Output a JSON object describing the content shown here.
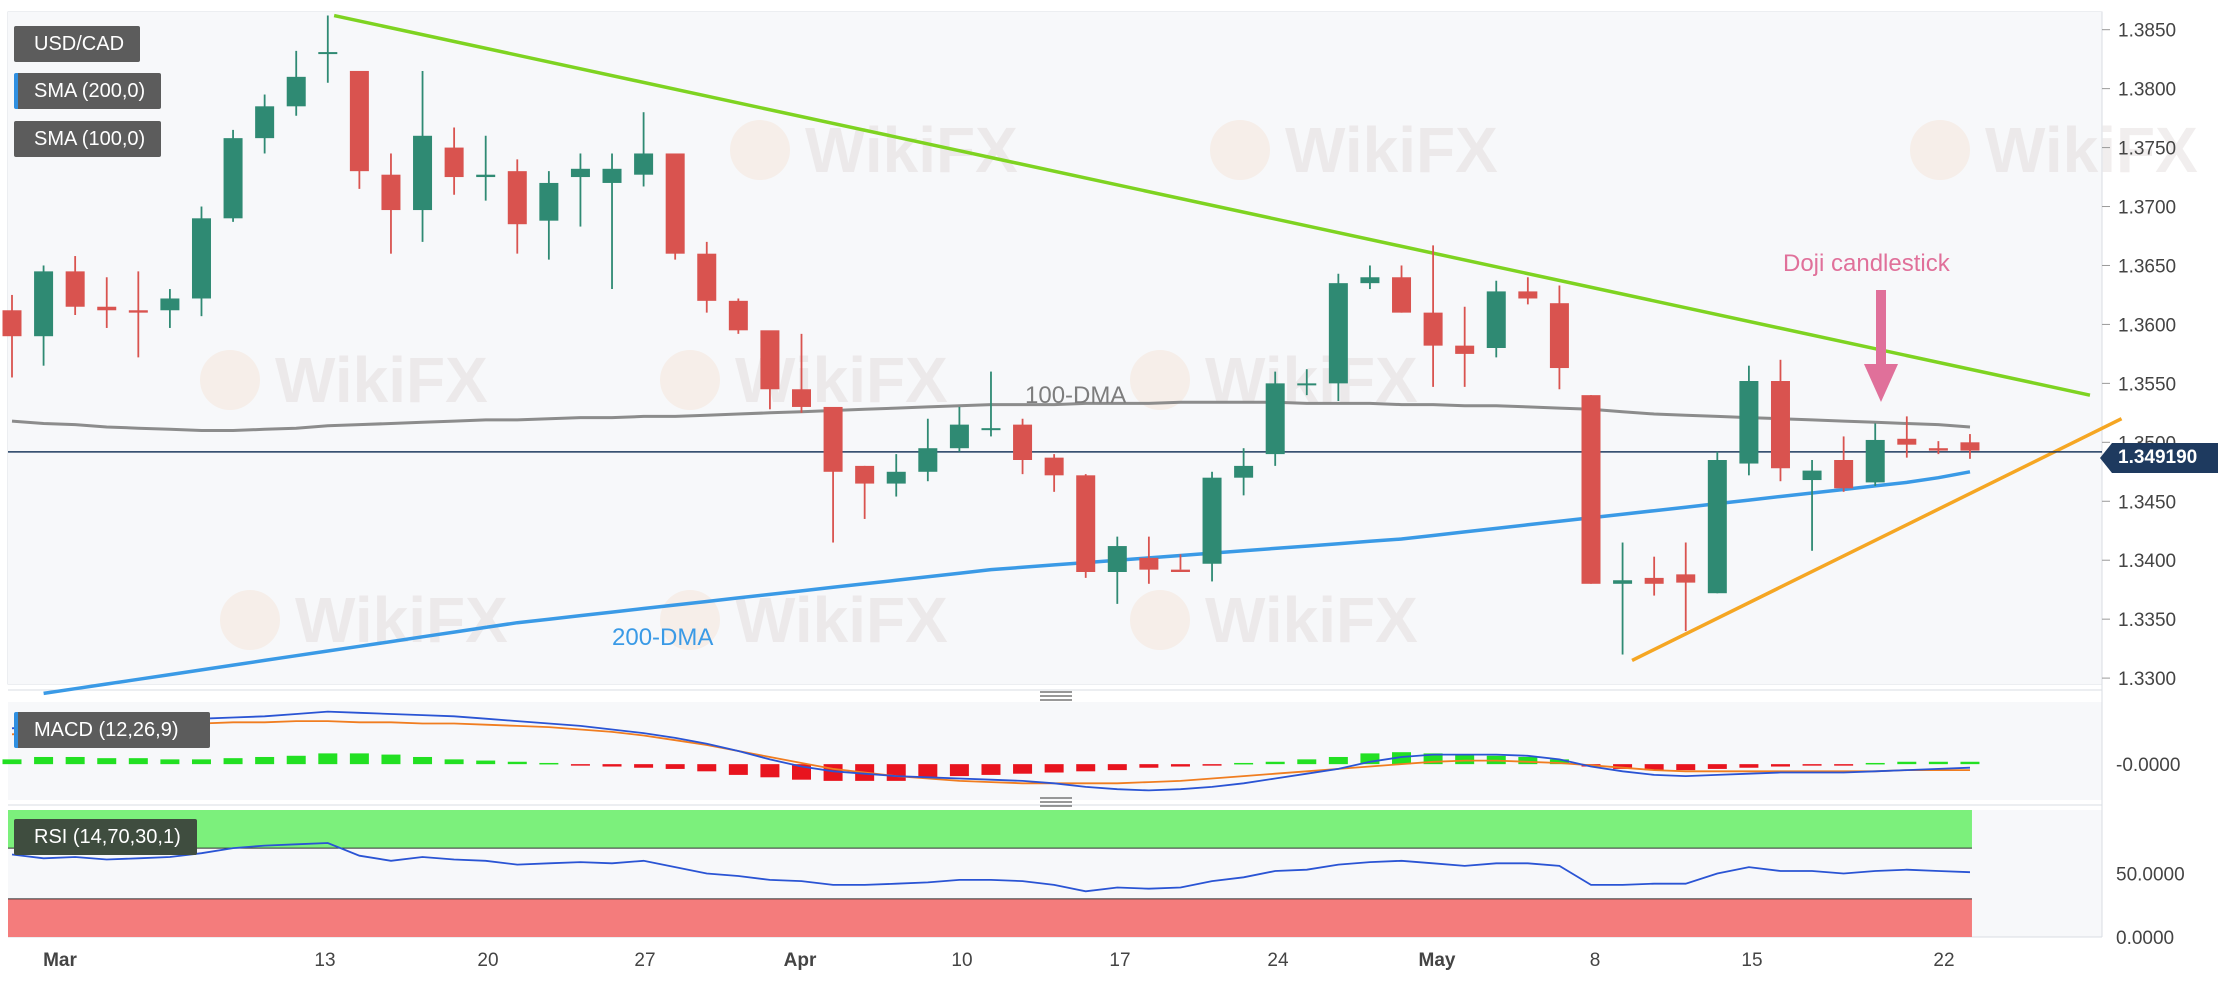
{
  "instrument": "USD/CAD",
  "legend": {
    "sma200": "SMA (200,0)",
    "sma100": "SMA (100,0)",
    "macd": "MACD (12,26,9)",
    "rsi": "RSI (14,70,30,1)"
  },
  "annotations": {
    "dma100": "100-DMA",
    "dma200": "200-DMA",
    "doji": "Doji candlestick"
  },
  "last_price": "1.349190",
  "watermark": "WikiFX",
  "colors": {
    "up": "#2f8a73",
    "down": "#d9534f",
    "sma100": "#8c8c8c",
    "sma200": "#3a9ae6",
    "resistance": "#7ed321",
    "support": "#f5a623",
    "doji_arrow": "#e0709a",
    "macd_pos": "#22e022",
    "macd_neg": "#e8141e",
    "rsi_upper": "#7cf07c",
    "rsi_lower": "#f47c7c"
  },
  "chart_data": {
    "type": "candlestick",
    "main": {
      "x_labels": [
        "Mar",
        "13",
        "20",
        "27",
        "Apr",
        "10",
        "17",
        "24",
        "May",
        "8",
        "15",
        "22"
      ],
      "y_ticks": [
        "1.3850",
        "1.3800",
        "1.3750",
        "1.3700",
        "1.3650",
        "1.3600",
        "1.3550",
        "1.3500",
        "1.3450",
        "1.3400",
        "1.3350",
        "1.3300"
      ],
      "ylim": [
        1.3295,
        1.3865
      ],
      "candles": [
        [
          1.3612,
          1.359,
          1.3625,
          1.3555
        ],
        [
          1.359,
          1.3645,
          1.365,
          1.3565
        ],
        [
          1.3645,
          1.3615,
          1.3658,
          1.3608
        ],
        [
          1.3615,
          1.3612,
          1.364,
          1.3597
        ],
        [
          1.3612,
          1.361,
          1.3645,
          1.3572
        ],
        [
          1.3612,
          1.3622,
          1.363,
          1.3597
        ],
        [
          1.3622,
          1.369,
          1.37,
          1.3607
        ],
        [
          1.369,
          1.3758,
          1.3765,
          1.3687
        ],
        [
          1.3758,
          1.3785,
          1.3795,
          1.3745
        ],
        [
          1.3785,
          1.381,
          1.3832,
          1.3777
        ],
        [
          1.383,
          1.3831,
          1.3862,
          1.3805
        ],
        [
          1.3815,
          1.373,
          1.3815,
          1.3715
        ],
        [
          1.3727,
          1.3697,
          1.3745,
          1.366
        ],
        [
          1.3697,
          1.376,
          1.3815,
          1.367
        ],
        [
          1.375,
          1.3725,
          1.3767,
          1.371
        ],
        [
          1.3725,
          1.3727,
          1.376,
          1.3705
        ],
        [
          1.373,
          1.3685,
          1.374,
          1.366
        ],
        [
          1.3688,
          1.372,
          1.373,
          1.3655
        ],
        [
          1.3725,
          1.3732,
          1.3745,
          1.3683
        ],
        [
          1.372,
          1.3732,
          1.3745,
          1.363
        ],
        [
          1.3727,
          1.3745,
          1.378,
          1.3717
        ],
        [
          1.3745,
          1.366,
          1.3745,
          1.3655
        ],
        [
          1.366,
          1.362,
          1.367,
          1.361
        ],
        [
          1.362,
          1.3595,
          1.3622,
          1.3592
        ],
        [
          1.3595,
          1.3545,
          1.359,
          1.3528
        ],
        [
          1.3545,
          1.353,
          1.3592,
          1.3525
        ],
        [
          1.353,
          1.3475,
          1.352,
          1.3415
        ],
        [
          1.348,
          1.3465,
          1.348,
          1.3435
        ],
        [
          1.3465,
          1.3475,
          1.349,
          1.3454
        ],
        [
          1.3475,
          1.3495,
          1.352,
          1.3467
        ],
        [
          1.3495,
          1.3515,
          1.353,
          1.3492
        ],
        [
          1.3512,
          1.3512,
          1.356,
          1.3505
        ],
        [
          1.3515,
          1.3485,
          1.352,
          1.3473
        ],
        [
          1.3487,
          1.3472,
          1.349,
          1.3458
        ],
        [
          1.3472,
          1.339,
          1.3473,
          1.3385
        ],
        [
          1.339,
          1.3412,
          1.342,
          1.3363
        ],
        [
          1.3402,
          1.3392,
          1.342,
          1.338
        ],
        [
          1.3392,
          1.339,
          1.3405,
          1.3392
        ],
        [
          1.3397,
          1.347,
          1.3475,
          1.3382
        ],
        [
          1.347,
          1.348,
          1.3495,
          1.3455
        ],
        [
          1.349,
          1.355,
          1.356,
          1.348
        ],
        [
          1.355,
          1.355,
          1.3562,
          1.354
        ],
        [
          1.355,
          1.3635,
          1.3643,
          1.3535
        ],
        [
          1.3635,
          1.364,
          1.365,
          1.363
        ],
        [
          1.364,
          1.361,
          1.365,
          1.361
        ],
        [
          1.361,
          1.3582,
          1.3667,
          1.3547
        ],
        [
          1.3582,
          1.3575,
          1.3615,
          1.3547
        ],
        [
          1.358,
          1.3628,
          1.3637,
          1.3572
        ],
        [
          1.3628,
          1.3622,
          1.364,
          1.3617
        ],
        [
          1.3618,
          1.3563,
          1.3633,
          1.3545
        ],
        [
          1.354,
          1.338,
          1.354,
          1.338
        ],
        [
          1.338,
          1.3383,
          1.3415,
          1.332
        ],
        [
          1.3385,
          1.338,
          1.3403,
          1.337
        ],
        [
          1.3388,
          1.3381,
          1.3415,
          1.334
        ],
        [
          1.3372,
          1.3485,
          1.3492,
          1.3372
        ],
        [
          1.3482,
          1.3552,
          1.3565,
          1.3472
        ],
        [
          1.3552,
          1.3478,
          1.357,
          1.3467
        ],
        [
          1.3468,
          1.3476,
          1.3485,
          1.3408
        ],
        [
          1.3485,
          1.3461,
          1.3505,
          1.3458
        ],
        [
          1.3466,
          1.3502,
          1.3516,
          1.3463
        ],
        [
          1.3503,
          1.3498,
          1.3522,
          1.3487
        ],
        [
          1.3495,
          1.3493,
          1.3501,
          1.349
        ],
        [
          1.35,
          1.3493,
          1.3507,
          1.3486
        ]
      ],
      "sma100": [
        1.3518,
        1.3516,
        1.3515,
        1.3513,
        1.3512,
        1.3511,
        1.351,
        1.351,
        1.3511,
        1.3512,
        1.3514,
        1.3515,
        1.3516,
        1.3517,
        1.3518,
        1.3519,
        1.3519,
        1.352,
        1.3521,
        1.3521,
        1.3522,
        1.3522,
        1.3523,
        1.3524,
        1.3525,
        1.3526,
        1.3527,
        1.3528,
        1.3529,
        1.353,
        1.3531,
        1.3532,
        1.3532,
        1.3532,
        1.3533,
        1.3533,
        1.3533,
        1.3534,
        1.3534,
        1.3534,
        1.3534,
        1.3533,
        1.3533,
        1.3533,
        1.3532,
        1.3532,
        1.3531,
        1.3531,
        1.353,
        1.3529,
        1.3528,
        1.3526,
        1.3524,
        1.3523,
        1.3522,
        1.3521,
        1.352,
        1.3519,
        1.3518,
        1.3517,
        1.3516,
        1.3515,
        1.3513
      ],
      "sma200": [
        1.3283,
        1.3287,
        1.3291,
        1.3295,
        1.3299,
        1.3303,
        1.3307,
        1.3311,
        1.3315,
        1.3319,
        1.3323,
        1.3327,
        1.3331,
        1.3335,
        1.3339,
        1.3343,
        1.3347,
        1.335,
        1.3353,
        1.3356,
        1.3359,
        1.3362,
        1.3365,
        1.3368,
        1.3371,
        1.3374,
        1.3377,
        1.338,
        1.3383,
        1.3386,
        1.3389,
        1.3392,
        1.3394,
        1.3396,
        1.3398,
        1.34,
        1.3402,
        1.3404,
        1.3406,
        1.3408,
        1.341,
        1.3412,
        1.3414,
        1.3416,
        1.3418,
        1.3421,
        1.3424,
        1.3427,
        1.343,
        1.3433,
        1.3436,
        1.3439,
        1.3442,
        1.3445,
        1.3448,
        1.3451,
        1.3454,
        1.3457,
        1.346,
        1.3463,
        1.3466,
        1.347,
        1.3475
      ],
      "resistance": {
        "x": [
          10.2,
          65.8
        ],
        "y": [
          1.3862,
          1.354
        ]
      },
      "support": {
        "x": [
          51.3,
          66.8
        ],
        "y": [
          1.3315,
          1.352
        ]
      },
      "last_price": 1.34919
    },
    "macd": {
      "y_tick": "-0.0000",
      "ylim": [
        -0.003,
        0.0052
      ],
      "histogram": [
        0.0004,
        0.0006,
        0.0006,
        0.0005,
        0.0005,
        0.0004,
        0.0004,
        0.0005,
        0.0006,
        0.0007,
        0.0009,
        0.0009,
        0.0008,
        0.0006,
        0.0004,
        0.0003,
        0.0002,
        0.0001,
        -0.0001,
        -0.0002,
        -0.0003,
        -0.0004,
        -0.0006,
        -0.0009,
        -0.0011,
        -0.0013,
        -0.0014,
        -0.0014,
        -0.0014,
        -0.0012,
        -0.001,
        -0.0009,
        -0.0008,
        -0.0007,
        -0.0006,
        -0.0005,
        -0.0003,
        -0.0002,
        -0.0001,
        0.0001,
        0.0002,
        0.0004,
        0.0006,
        0.0009,
        0.001,
        0.0009,
        0.0008,
        0.0007,
        0.0006,
        0.0004,
        -0.0002,
        -0.0004,
        -0.0005,
        -0.0005,
        -0.0004,
        -0.0003,
        -0.0002,
        -0.0001,
        -0.0001,
        0.0001,
        0.0002,
        0.0002,
        0.0002
      ],
      "macd": [
        0.003,
        0.0032,
        0.0034,
        0.0035,
        0.0036,
        0.0037,
        0.0038,
        0.0039,
        0.004,
        0.0042,
        0.0044,
        0.0043,
        0.0042,
        0.0041,
        0.004,
        0.0038,
        0.0036,
        0.0034,
        0.0032,
        0.0029,
        0.0026,
        0.0022,
        0.0017,
        0.0011,
        0.0004,
        -0.0002,
        -0.0006,
        -0.0008,
        -0.001,
        -0.0011,
        -0.0012,
        -0.0013,
        -0.0014,
        -0.0016,
        -0.0019,
        -0.0021,
        -0.0022,
        -0.0021,
        -0.0019,
        -0.0016,
        -0.0012,
        -0.0008,
        -0.0004,
        0.0002,
        0.0006,
        0.0008,
        0.0008,
        0.0008,
        0.0007,
        0.0004,
        -0.0002,
        -0.0006,
        -0.0009,
        -0.001,
        -0.0009,
        -0.0008,
        -0.0007,
        -0.0007,
        -0.0007,
        -0.0006,
        -0.0005,
        -0.0004,
        -0.0003
      ],
      "signal": [
        0.0025,
        0.0026,
        0.0028,
        0.0029,
        0.0031,
        0.0032,
        0.0034,
        0.0035,
        0.0035,
        0.0036,
        0.0036,
        0.0035,
        0.0035,
        0.0034,
        0.0034,
        0.0033,
        0.0032,
        0.0031,
        0.0029,
        0.0027,
        0.0024,
        0.002,
        0.0016,
        0.0011,
        0.0006,
        0.0001,
        -0.0004,
        -0.0007,
        -0.001,
        -0.0012,
        -0.0014,
        -0.0015,
        -0.0016,
        -0.0016,
        -0.0016,
        -0.0016,
        -0.0015,
        -0.0014,
        -0.0012,
        -0.001,
        -0.0008,
        -0.0006,
        -0.0004,
        -0.0002,
        0.0,
        0.0002,
        0.0003,
        0.0003,
        0.0002,
        0.0001,
        -0.0001,
        -0.0003,
        -0.0005,
        -0.0006,
        -0.0006,
        -0.0006,
        -0.0006,
        -0.0006,
        -0.0006,
        -0.0006,
        -0.0005,
        -0.0005,
        -0.0005
      ]
    },
    "rsi": {
      "y_ticks": [
        "50.0000",
        "0.0000"
      ],
      "ylim": [
        0,
        100
      ],
      "upper_band": 70,
      "lower_band": 30,
      "values": [
        65,
        62,
        63,
        61,
        62,
        63,
        66,
        70,
        72,
        73,
        74,
        64,
        60,
        63,
        61,
        60,
        57,
        58,
        59,
        58,
        60,
        55,
        50,
        48,
        45,
        44,
        41,
        41,
        42,
        43,
        45,
        45,
        44,
        41,
        36,
        39,
        38,
        39,
        44,
        47,
        52,
        53,
        57,
        59,
        60,
        58,
        56,
        58,
        58,
        56,
        41,
        41,
        42,
        42,
        50,
        55,
        52,
        52,
        50,
        52,
        53,
        52,
        51
      ]
    }
  }
}
